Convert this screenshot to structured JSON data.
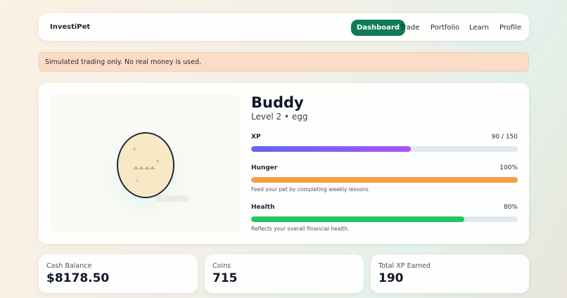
{
  "header": {
    "brand": "InvestiPet",
    "nav": [
      "Dashboard",
      "Trade",
      "Portfolio",
      "Learn",
      "Profile"
    ]
  },
  "banner": "Simulated trading only. No real money is used.",
  "pet": {
    "name": "Buddy",
    "level_line": "Level 2 • egg",
    "stats": [
      {
        "label": "XP",
        "value": 90,
        "max": 150,
        "value_label": "90 / 150"
      },
      {
        "label": "Hunger",
        "value": 100,
        "value_label": "100%",
        "note": "Feed your pet by completing weekly lessons."
      },
      {
        "label": "Health",
        "value": 80,
        "value_label": "80%",
        "note": "Reflects your overall financial health."
      }
    ]
  },
  "cards": [
    {
      "label": "Cash Balance",
      "value": "$8178.50"
    },
    {
      "label": "Coins",
      "value": 715
    },
    {
      "label": "Total XP Earned",
      "value": 190
    }
  ]
}
